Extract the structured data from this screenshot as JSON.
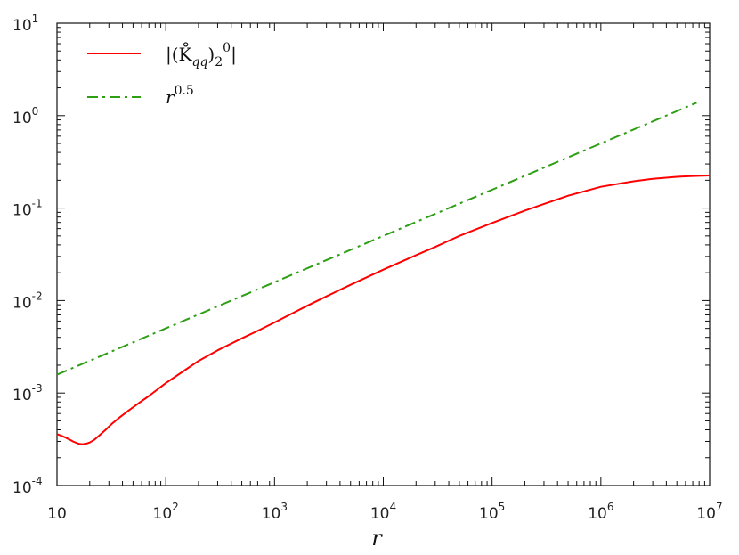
{
  "chart_data": {
    "type": "line",
    "title": "",
    "xlabel": "r",
    "ylabel": "",
    "x_scale": "log",
    "y_scale": "log",
    "xlim": [
      10,
      10000000
    ],
    "ylim": [
      0.0001,
      10
    ],
    "grid": false,
    "legend_placement": "top-left",
    "x_ticks": [
      {
        "value": 10,
        "base": "10",
        "exp": ""
      },
      {
        "value": 100,
        "base": "10",
        "exp": "2"
      },
      {
        "value": 1000,
        "base": "10",
        "exp": "3"
      },
      {
        "value": 10000,
        "base": "10",
        "exp": "4"
      },
      {
        "value": 100000,
        "base": "10",
        "exp": "5"
      },
      {
        "value": 1000000,
        "base": "10",
        "exp": "6"
      },
      {
        "value": 10000000,
        "base": "10",
        "exp": "7"
      }
    ],
    "y_ticks": [
      {
        "value": 10,
        "base": "10",
        "exp": "1"
      },
      {
        "value": 1,
        "base": "10",
        "exp": "0"
      },
      {
        "value": 0.1,
        "base": "10",
        "exp": "-1"
      },
      {
        "value": 0.01,
        "base": "10",
        "exp": "-2"
      },
      {
        "value": 0.001,
        "base": "10",
        "exp": "-3"
      },
      {
        "value": 0.0001,
        "base": "10",
        "exp": "-4"
      }
    ],
    "series": [
      {
        "name": "|(K̊qq)2 0|",
        "color": "#ff0000",
        "dash": "solid",
        "x": [
          10,
          11,
          12,
          13,
          14,
          15,
          16,
          17,
          18,
          19,
          20,
          22,
          25,
          28,
          32,
          38,
          45,
          55,
          70,
          100,
          150,
          200,
          300,
          500,
          700,
          1000,
          2000,
          3000,
          5000,
          10000,
          20000,
          30000,
          50000,
          100000,
          200000,
          300000,
          500000,
          1000000,
          2000000,
          3000000,
          5000000,
          7000000,
          10000000
        ],
        "y": [
          0.00036,
          0.000345,
          0.00033,
          0.000315,
          0.0003,
          0.00029,
          0.000282,
          0.00028,
          0.000282,
          0.000286,
          0.000292,
          0.000312,
          0.000355,
          0.0004,
          0.000465,
          0.00055,
          0.00064,
          0.00076,
          0.00093,
          0.00128,
          0.00177,
          0.00222,
          0.0029,
          0.0039,
          0.0047,
          0.0058,
          0.0088,
          0.0111,
          0.0148,
          0.0216,
          0.031,
          0.038,
          0.05,
          0.069,
          0.094,
          0.111,
          0.136,
          0.17,
          0.195,
          0.207,
          0.218,
          0.222,
          0.225
        ]
      },
      {
        "name": "r^0.5",
        "color": "#2e9e14",
        "dash": "dash-dot",
        "x": [
          10,
          100,
          1000,
          10000,
          100000,
          1000000,
          7600000
        ],
        "y": [
          0.00158,
          0.005,
          0.0158,
          0.05,
          0.158,
          0.5,
          1.38
        ]
      }
    ],
    "legend": [
      {
        "label_main": "|(K̊",
        "label_sub": "qq",
        "label_mid": ")",
        "label_sub2": "2",
        "label_sup": "0",
        "label_end": "|"
      },
      {
        "label_main": "r",
        "label_sup": "0.5"
      }
    ]
  }
}
